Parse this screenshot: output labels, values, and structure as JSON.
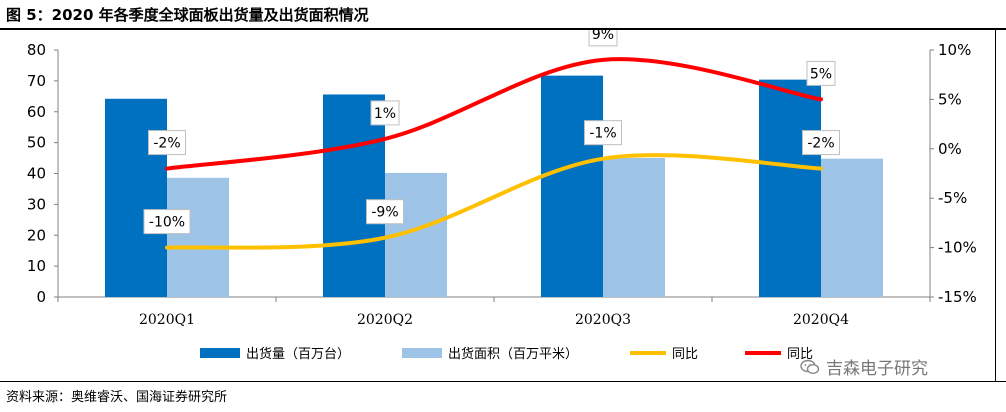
{
  "figure": {
    "title": "图 5：2020 年各季度全球面板出货量及出货面积情况",
    "source": "资料来源：奥维睿沃、国海证券研究所",
    "watermark": "吉森电子研究",
    "watermark_icon": "wechat-logo-icon"
  },
  "chart_data": {
    "type": "bar",
    "categories": [
      "2020Q1",
      "2020Q2",
      "2020Q3",
      "2020Q4"
    ],
    "left_axis": {
      "ylim": [
        0,
        80
      ],
      "ticks": [
        0,
        10,
        20,
        30,
        40,
        50,
        60,
        70,
        80
      ],
      "tick_labels": [
        "0",
        "10",
        "20",
        "30",
        "40",
        "50",
        "60",
        "70",
        "80"
      ]
    },
    "right_axis": {
      "ylim": [
        -15,
        10
      ],
      "ticks": [
        -15,
        -10,
        -5,
        0,
        5,
        10
      ],
      "tick_labels": [
        "-15%",
        "-10%",
        "-5%",
        "0%",
        "5%",
        "10%"
      ]
    },
    "series": [
      {
        "name": "出货量（百万台）",
        "kind": "bar",
        "axis": "left",
        "color": "#0070C0",
        "values": [
          64.2,
          65.6,
          71.7,
          70.4
        ]
      },
      {
        "name": "出货面积（百万平米）",
        "kind": "bar",
        "axis": "left",
        "color": "#9DC3E6",
        "values": [
          38.6,
          40.2,
          45.0,
          44.8
        ]
      },
      {
        "name": "同比",
        "kind": "line",
        "axis": "right",
        "color": "#FFC000",
        "values": [
          -10,
          -9,
          -1,
          -2
        ],
        "labels": [
          "-10%",
          "-9%",
          "-1%",
          "-2%"
        ]
      },
      {
        "name": "同比",
        "kind": "line",
        "axis": "right",
        "color": "#FF0000",
        "values": [
          -2,
          1,
          9,
          5
        ],
        "labels": [
          "-2%",
          "1%",
          "9%",
          "5%"
        ]
      }
    ],
    "grid": false,
    "legend": "bottom"
  }
}
